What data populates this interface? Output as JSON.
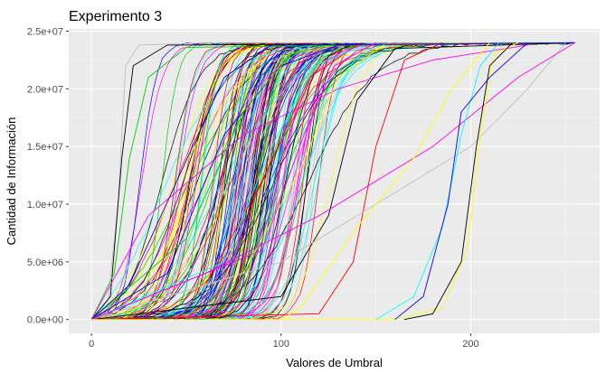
{
  "chart_data": {
    "type": "line",
    "title": "Experimento 3",
    "xlabel": "Valores de Umbral",
    "ylabel": "Cantidad de Información",
    "xlim": [
      -12,
      268
    ],
    "ylim": [
      -1200000,
      25200000
    ],
    "x_ticks": [
      0,
      100,
      200
    ],
    "x_tick_labels": [
      "0",
      "100",
      "200"
    ],
    "y_ticks": [
      0,
      5000000,
      10000000,
      15000000,
      20000000,
      25000000
    ],
    "y_tick_labels": [
      "0.0e+00",
      "5.0e+06",
      "1.0e+07",
      "1.5e+07",
      "2.0e+07",
      "2.5e+07"
    ],
    "y_max": 24000000,
    "grid": true,
    "legend": "none",
    "background": "#ebebeb",
    "series_colors": [
      "#000000",
      "#ff0000",
      "#00cd00",
      "#0000ff",
      "#00ffff",
      "#ff00ff",
      "#ffff00",
      "#bebebe"
    ],
    "series": [
      {
        "color": "#bebebe",
        "points": [
          [
            0,
            0
          ],
          [
            8,
            500000
          ],
          [
            14,
            10000000
          ],
          [
            18,
            22000000
          ],
          [
            25,
            23800000
          ],
          [
            60,
            24000000
          ],
          [
            255,
            24000000
          ]
        ]
      },
      {
        "color": "#000000",
        "points": [
          [
            0,
            0
          ],
          [
            10,
            2000000
          ],
          [
            16,
            14000000
          ],
          [
            22,
            22000000
          ],
          [
            40,
            23800000
          ],
          [
            255,
            24000000
          ]
        ]
      },
      {
        "color": "#00cd00",
        "points": [
          [
            0,
            0
          ],
          [
            12,
            4000000
          ],
          [
            20,
            14000000
          ],
          [
            30,
            21000000
          ],
          [
            50,
            23600000
          ],
          [
            255,
            24000000
          ]
        ]
      },
      {
        "color": "#ff00ff",
        "points": [
          [
            0,
            0
          ],
          [
            30,
            9000000
          ],
          [
            80,
            16000000
          ],
          [
            130,
            20000000
          ],
          [
            180,
            22500000
          ],
          [
            230,
            23800000
          ]
        ]
      },
      {
        "color": "#0000ff",
        "points": [
          [
            0,
            0
          ],
          [
            40,
            4000000
          ],
          [
            70,
            16000000
          ],
          [
            100,
            22000000
          ],
          [
            130,
            23800000
          ],
          [
            255,
            24000000
          ]
        ]
      },
      {
        "color": "#ff0000",
        "points": [
          [
            0,
            0
          ],
          [
            60,
            3000000
          ],
          [
            90,
            12000000
          ],
          [
            115,
            21000000
          ],
          [
            140,
            23800000
          ],
          [
            255,
            24000000
          ]
        ]
      },
      {
        "color": "#00ffff",
        "points": [
          [
            0,
            0
          ],
          [
            70,
            5000000
          ],
          [
            95,
            15000000
          ],
          [
            118,
            22000000
          ],
          [
            145,
            23900000
          ],
          [
            255,
            24000000
          ]
        ]
      },
      {
        "color": "#ffff00",
        "points": [
          [
            0,
            0
          ],
          [
            80,
            4000000
          ],
          [
            110,
            13000000
          ],
          [
            130,
            21000000
          ],
          [
            155,
            23900000
          ],
          [
            255,
            24000000
          ]
        ]
      },
      {
        "color": "#000000",
        "points": [
          [
            0,
            0
          ],
          [
            100,
            2000000
          ],
          [
            125,
            9000000
          ],
          [
            140,
            19000000
          ],
          [
            160,
            23500000
          ],
          [
            255,
            24000000
          ]
        ]
      },
      {
        "color": "#ff0000",
        "points": [
          [
            0,
            0
          ],
          [
            120,
            500000
          ],
          [
            138,
            5000000
          ],
          [
            150,
            15000000
          ],
          [
            165,
            22500000
          ],
          [
            185,
            24000000
          ]
        ]
      },
      {
        "color": "#00cd00",
        "points": [
          [
            0,
            0
          ],
          [
            50,
            7000000
          ],
          [
            80,
            18000000
          ],
          [
            105,
            23000000
          ],
          [
            130,
            24000000
          ]
        ]
      },
      {
        "color": "#0000ff",
        "points": [
          [
            0,
            0
          ],
          [
            20,
            3000000
          ],
          [
            45,
            12000000
          ],
          [
            70,
            21000000
          ],
          [
            95,
            23800000
          ],
          [
            255,
            24000000
          ]
        ]
      },
      {
        "color": "#ff00ff",
        "points": [
          [
            0,
            0
          ],
          [
            90,
            6000000
          ],
          [
            112,
            16000000
          ],
          [
            128,
            22000000
          ],
          [
            150,
            24000000
          ]
        ]
      },
      {
        "color": "#bebebe",
        "points": [
          [
            0,
            0
          ],
          [
            100,
            5000000
          ],
          [
            150,
            10000000
          ],
          [
            200,
            15000000
          ],
          [
            230,
            20000000
          ],
          [
            250,
            24000000
          ]
        ]
      },
      {
        "color": "#ff00ff",
        "points": [
          [
            0,
            0
          ],
          [
            60,
            4000000
          ],
          [
            120,
            9000000
          ],
          [
            180,
            15000000
          ],
          [
            225,
            21000000
          ],
          [
            255,
            24000000
          ]
        ]
      },
      {
        "color": "#ffff00",
        "points": [
          [
            0,
            0
          ],
          [
            130,
            0
          ],
          [
            160,
            0
          ],
          [
            185,
            1000000
          ],
          [
            198,
            6000000
          ],
          [
            205,
            16000000
          ],
          [
            212,
            23000000
          ],
          [
            225,
            24000000
          ]
        ]
      },
      {
        "color": "#000000",
        "points": [
          [
            165,
            0
          ],
          [
            180,
            500000
          ],
          [
            195,
            5000000
          ],
          [
            203,
            15000000
          ],
          [
            210,
            22000000
          ],
          [
            222,
            24000000
          ]
        ]
      },
      {
        "color": "#00ffff",
        "points": [
          [
            150,
            0
          ],
          [
            170,
            2000000
          ],
          [
            185,
            8000000
          ],
          [
            195,
            16000000
          ],
          [
            205,
            22000000
          ],
          [
            215,
            24000000
          ]
        ]
      },
      {
        "color": "#0000ff",
        "points": [
          [
            160,
            0
          ],
          [
            175,
            2000000
          ],
          [
            188,
            10000000
          ],
          [
            195,
            18000000
          ],
          [
            210,
            21000000
          ],
          [
            230,
            24000000
          ]
        ]
      },
      {
        "color": "#ffff00",
        "points": [
          [
            100,
            0
          ],
          [
            110,
            1000000
          ],
          [
            140,
            8000000
          ],
          [
            170,
            14000000
          ],
          [
            190,
            20000000
          ],
          [
            210,
            24000000
          ]
        ]
      }
    ]
  }
}
